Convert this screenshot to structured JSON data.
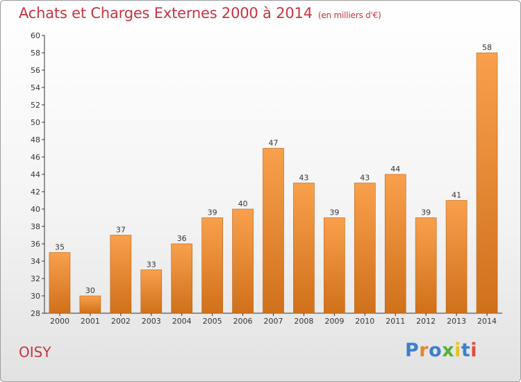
{
  "header": {
    "title": "Achats et Charges Externes 2000 à 2014",
    "unit": "(en milliers d'€)"
  },
  "footer": {
    "city": "OISY",
    "logo": "Proxiti"
  },
  "colors": {
    "title": "#c8333f",
    "bar_top": "#f9a04c",
    "bar_bottom": "#d0701a",
    "axis": "#333333"
  },
  "chart_data": {
    "type": "bar",
    "title": "Achats et Charges Externes 2000 à 2014",
    "subtitle": "(en milliers d'€)",
    "xlabel": "",
    "ylabel": "",
    "categories": [
      "2000",
      "2001",
      "2002",
      "2003",
      "2004",
      "2005",
      "2006",
      "2007",
      "2008",
      "2009",
      "2010",
      "2011",
      "2012",
      "2013",
      "2014"
    ],
    "values": [
      35,
      30,
      37,
      33,
      36,
      39,
      40,
      47,
      43,
      39,
      43,
      44,
      39,
      41,
      58
    ],
    "ylim": [
      28,
      60
    ],
    "yticks": [
      28,
      30,
      32,
      34,
      36,
      38,
      40,
      42,
      44,
      46,
      48,
      50,
      52,
      54,
      56,
      58,
      60
    ],
    "grid": false,
    "data_labels": true
  }
}
